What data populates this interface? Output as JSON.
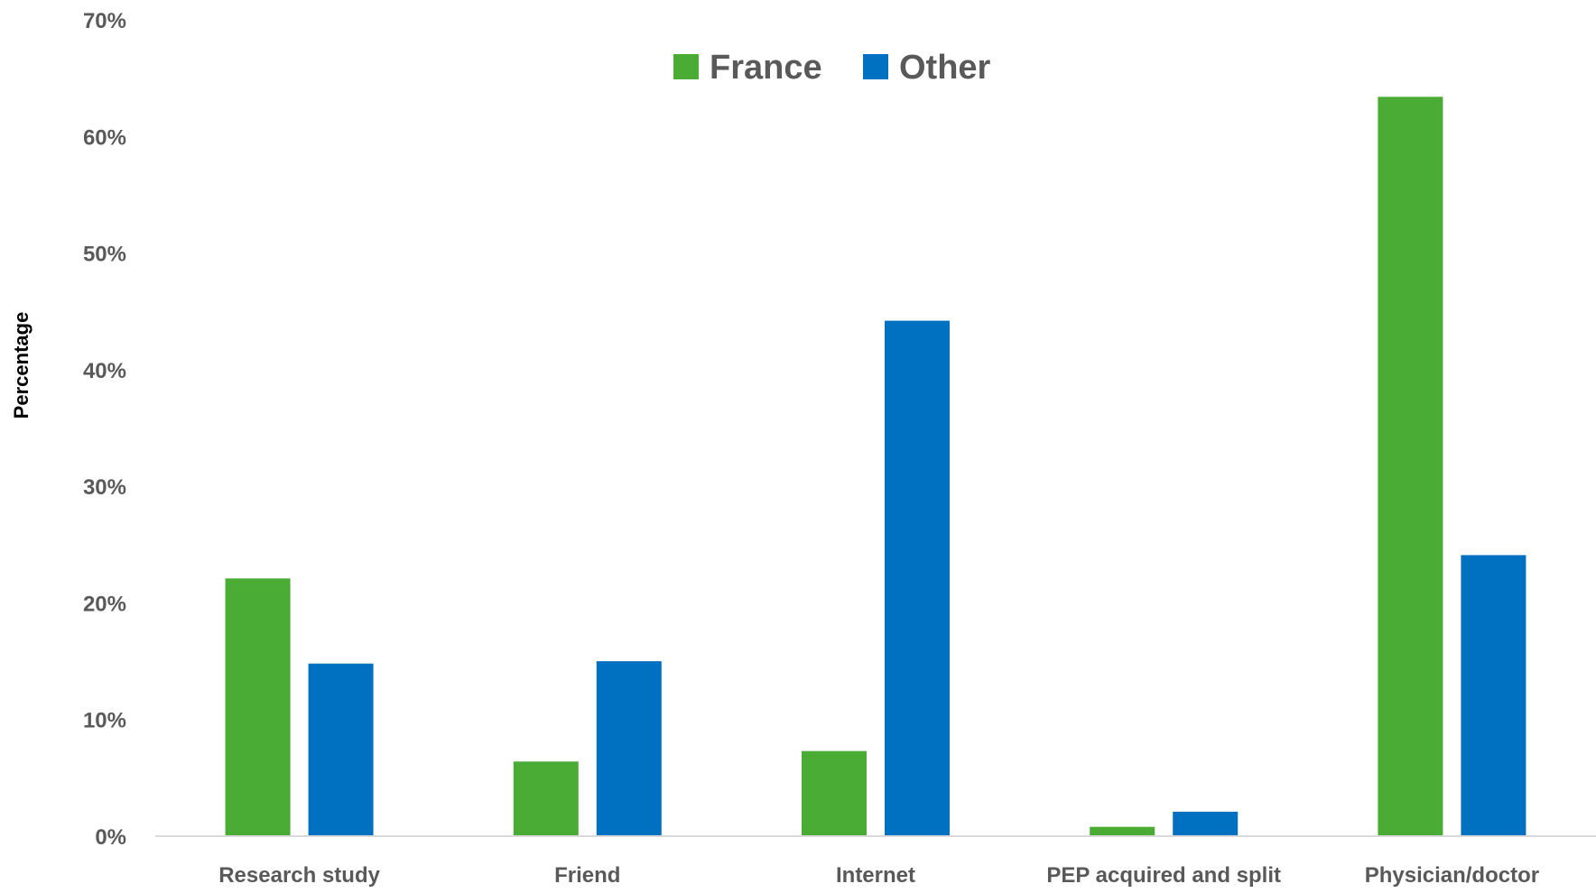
{
  "chart_data": {
    "type": "bar",
    "title": "",
    "xlabel": "",
    "ylabel": "Percentage",
    "ylim": [
      0,
      70
    ],
    "y_ticks": [
      0,
      10,
      20,
      30,
      40,
      50,
      60,
      70
    ],
    "y_tick_labels": [
      "0%",
      "10%",
      "20%",
      "30%",
      "40%",
      "50%",
      "60%",
      "70%"
    ],
    "grid": false,
    "legend_position": "top-center",
    "categories": [
      "Research study",
      "Friend",
      "Internet",
      "PEP acquired and split",
      "Physician/doctor"
    ],
    "series": [
      {
        "name": "France",
        "color": "#4aab35",
        "values": [
          22.1,
          6.4,
          7.3,
          0.8,
          63.4
        ]
      },
      {
        "name": "Other",
        "color": "#0070c0",
        "values": [
          14.8,
          15.0,
          44.2,
          2.1,
          24.1
        ]
      }
    ]
  }
}
